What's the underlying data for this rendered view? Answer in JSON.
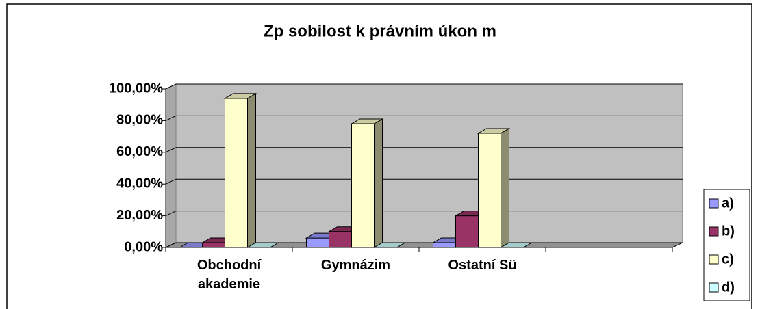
{
  "chart_data": {
    "type": "bar3d",
    "title": "Zp  sobilost k právním úkon  m",
    "categories": [
      "Obchodní akademie",
      "Gymnázim",
      "Ostatní Sü",
      null
    ],
    "series": [
      {
        "name": "a)",
        "color": "#9999ff",
        "values": [
          0,
          6,
          3,
          null
        ]
      },
      {
        "name": "b)",
        "color": "#993366",
        "values": [
          3,
          10,
          20,
          null
        ]
      },
      {
        "name": "c)",
        "color": "#ffffcc",
        "values": [
          94,
          78,
          72,
          null
        ]
      },
      {
        "name": "d)",
        "color": "#ccffff",
        "values": [
          0,
          0,
          0,
          null
        ]
      }
    ],
    "ylim": [
      0,
      100
    ],
    "yticks": [
      {
        "value": 0,
        "label": "0,00%"
      },
      {
        "value": 20,
        "label": "20,00%"
      },
      {
        "value": 40,
        "label": "40,00%"
      },
      {
        "value": 60,
        "label": "60,00%"
      },
      {
        "value": 80,
        "label": "80,00%"
      },
      {
        "value": 100,
        "label": "100,00%"
      }
    ],
    "grid": true,
    "legend": "right"
  }
}
